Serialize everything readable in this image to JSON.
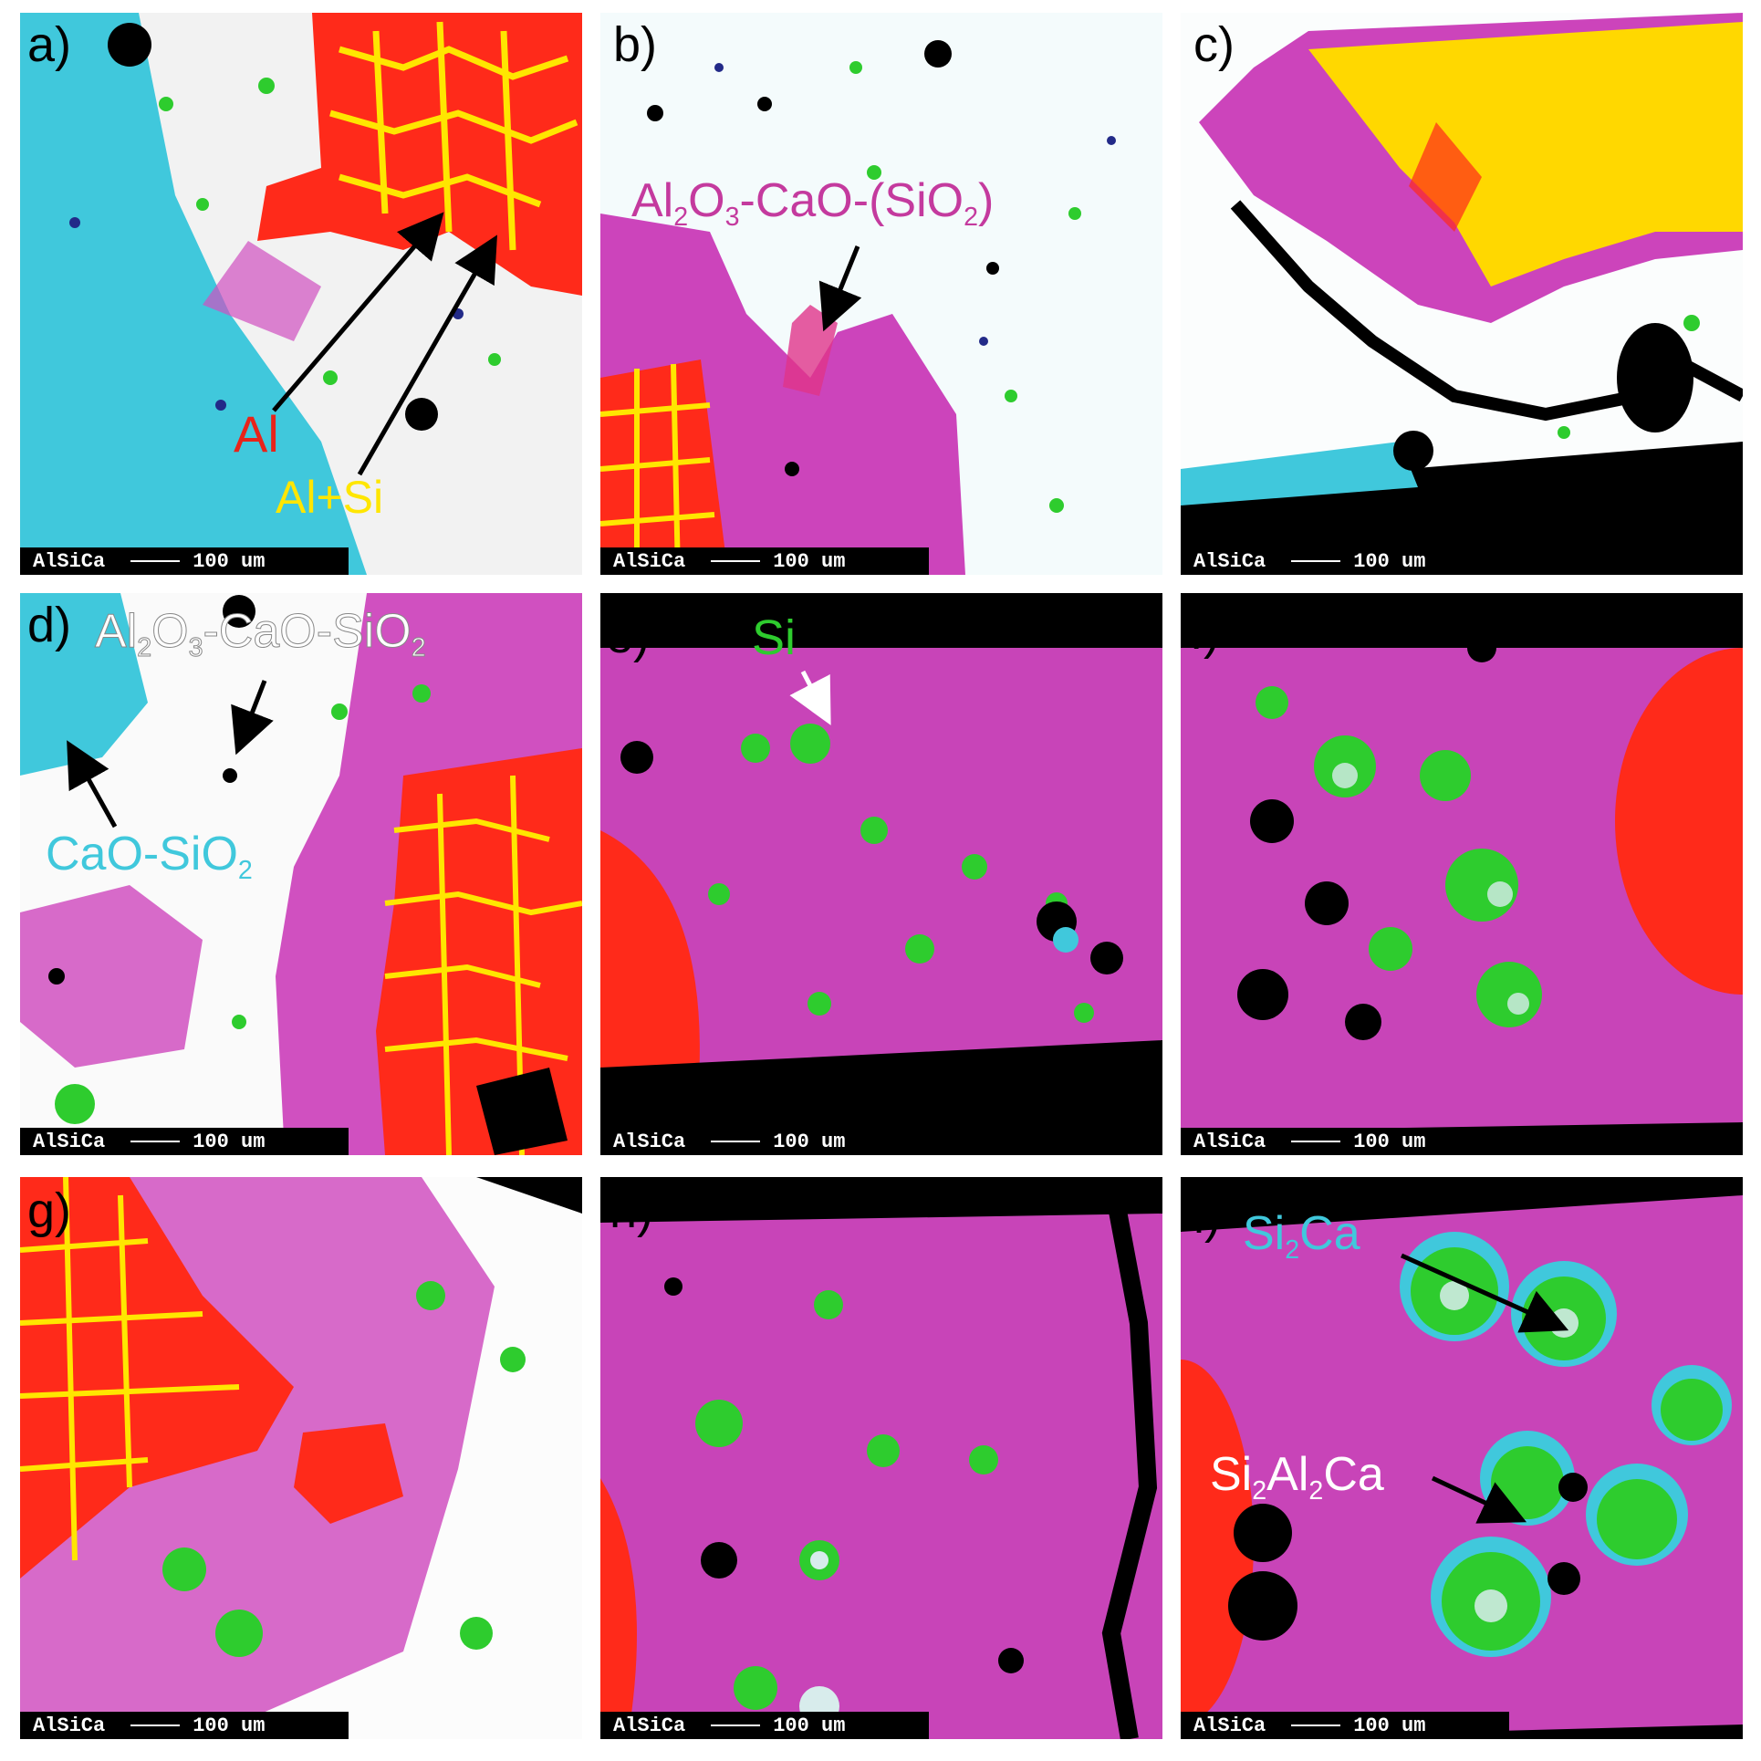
{
  "panels": [
    {
      "id": "a",
      "label": "a)",
      "scale_element": "AlSiCa",
      "scale_value": "100 um"
    },
    {
      "id": "b",
      "label": "b)",
      "scale_element": "AlSiCa",
      "scale_value": "100 um"
    },
    {
      "id": "c",
      "label": "c)",
      "scale_element": "AlSiCa",
      "scale_value": "100 um"
    },
    {
      "id": "d",
      "label": "d)",
      "scale_element": "AlSiCa",
      "scale_value": "100 um"
    },
    {
      "id": "e",
      "label": "e)",
      "scale_element": "AlSiCa",
      "scale_value": "100 um"
    },
    {
      "id": "f",
      "label": "f)",
      "scale_element": "AlSiCa",
      "scale_value": "100 um"
    },
    {
      "id": "g",
      "label": "g)",
      "scale_element": "AlSiCa",
      "scale_value": "100 um"
    },
    {
      "id": "h",
      "label": "h)",
      "scale_element": "AlSiCa",
      "scale_value": "100 um"
    },
    {
      "id": "i",
      "label": "i)",
      "scale_element": "AlSiCa",
      "scale_value": "100 um"
    }
  ],
  "annotations": {
    "a_al": "Al",
    "a_alsi": "Al+Si",
    "b_oxide_1": "Al",
    "b_oxide_2": "2",
    "b_oxide_3": "O",
    "b_oxide_4": "3",
    "b_oxide_5": "-CaO-(SiO",
    "b_oxide_6": "2",
    "b_oxide_7": ")",
    "d_oxide_1": "Al",
    "d_oxide_2": "2",
    "d_oxide_3": "O",
    "d_oxide_4": "3",
    "d_oxide_5": "-CaO-SiO",
    "d_oxide_6": "2",
    "d_casio_1": "CaO-SiO",
    "d_casio_2": "2",
    "e_si": "Si",
    "i_si2ca_1": "Si",
    "i_si2ca_2": "2",
    "i_si2ca_3": "Ca",
    "i_si2al2ca_1": "Si",
    "i_si2al2ca_2": "2",
    "i_si2al2ca_3": "Al",
    "i_si2al2ca_4": "2",
    "i_si2al2ca_5": "Ca"
  },
  "colors": {
    "al": "#ff2a1a",
    "al_si": "#ffe600",
    "si": "#2ecc2e",
    "ca_si": "#40c8dc",
    "matrix": "#cc44bb",
    "oxide": "#ffffff",
    "pore": "#000000"
  }
}
